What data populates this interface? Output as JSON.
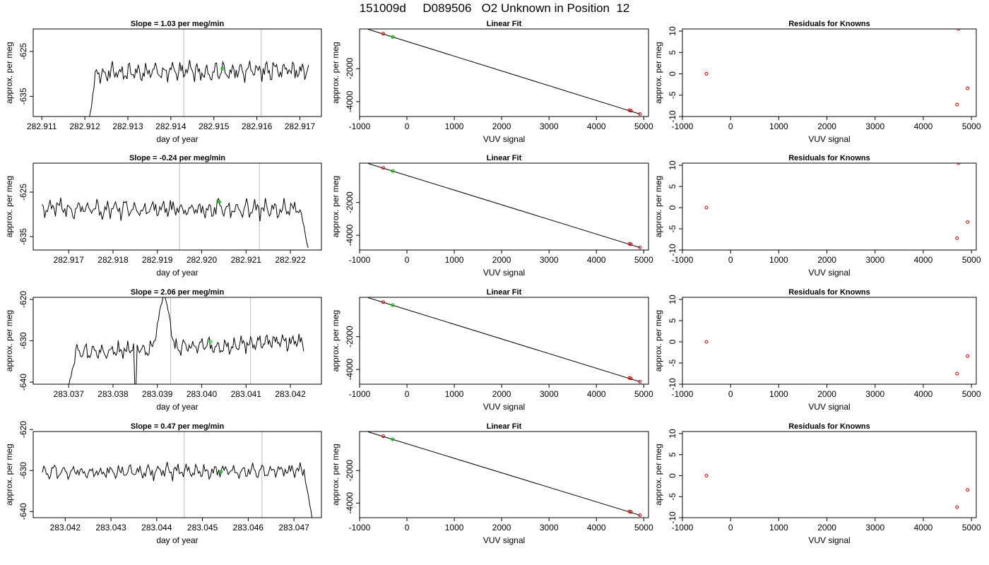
{
  "page_title": "151009d     D089506   O2 Unknown in Position  12",
  "colors": {
    "trace": "#000000",
    "known_point": "#cc0000",
    "unknown_point": "#00cc00",
    "marker_line": "#bbbbbb"
  },
  "chart_data": [
    {
      "type": "line",
      "row": 0,
      "title": "Slope =  1.03  per meg/min",
      "xlabel": "day of year",
      "ylabel": "approx. per meg",
      "xlim": [
        282.9108,
        282.9175
      ],
      "ylim": [
        -639.5,
        -620
      ],
      "xticks": [
        282.911,
        282.912,
        282.913,
        282.914,
        282.915,
        282.916,
        282.917
      ],
      "xtick_labels": [
        "282.911",
        "282.912",
        "282.913",
        "282.914",
        "282.915",
        "282.916",
        "282.917"
      ],
      "yticks": [
        -625,
        -635
      ],
      "ytick_labels": [
        "-625",
        "-635"
      ],
      "vlines": [
        282.9143,
        282.9161
      ],
      "trace": {
        "x_start": 282.9121,
        "x_end": 282.9172,
        "points": 180,
        "base": -629.5,
        "amplitude": 2.3,
        "drift": 0.8,
        "seed": 1,
        "start_drop": -640,
        "ramp_to": -631.5
      },
      "unknown_point": [
        282.9152,
        -628.8
      ]
    },
    {
      "type": "scatter_line",
      "row": 0,
      "title": "Linear Fit",
      "xlabel": "VUV signal",
      "ylabel": "approx. per meg",
      "xlim": [
        -1000,
        5100
      ],
      "ylim": [
        -4900,
        400
      ],
      "xticks": [
        -1000,
        0,
        1000,
        2000,
        3000,
        4000,
        5000
      ],
      "xtick_labels": [
        "-1000",
        "0",
        "1000",
        "2000",
        "3000",
        "4000",
        "5000"
      ],
      "yticks": [
        -2000,
        -4000
      ],
      "ytick_labels": [
        "-2000",
        "-4000"
      ],
      "fit_line": [
        [
          -820,
          380
        ],
        [
          4920,
          -4750
        ]
      ],
      "knowns": [
        [
          -500,
          110
        ],
        [
          4700,
          -4520
        ],
        [
          4730,
          -4550
        ],
        [
          4920,
          -4750
        ]
      ],
      "unknown": [
        -300,
        -80
      ]
    },
    {
      "type": "scatter",
      "row": 0,
      "title": "Residuals for Knowns",
      "xlabel": "VUV signal",
      "ylabel": "approx. per meg",
      "xlim": [
        -1000,
        5100
      ],
      "ylim": [
        -10,
        10.5
      ],
      "xticks": [
        -1000,
        0,
        1000,
        2000,
        3000,
        4000,
        5000
      ],
      "xtick_labels": [
        "-1000",
        "0",
        "1000",
        "2000",
        "3000",
        "4000",
        "5000"
      ],
      "yticks": [
        -10,
        -5,
        0,
        5,
        10
      ],
      "ytick_labels": [
        "-10",
        "-5",
        "0",
        "5",
        "10"
      ],
      "points": [
        [
          -500,
          0
        ],
        [
          4700,
          -7.2
        ],
        [
          4730,
          10.5
        ],
        [
          4920,
          -3.4
        ]
      ]
    },
    {
      "type": "line",
      "row": 1,
      "title": "Slope =  -0.24  per meg/min",
      "xlabel": "day of year",
      "ylabel": "approx. per meg",
      "xlim": [
        282.9162,
        282.9227
      ],
      "ylim": [
        -638,
        -618.5
      ],
      "xticks": [
        282.917,
        282.918,
        282.919,
        282.92,
        282.921,
        282.922
      ],
      "xtick_labels": [
        "282.917",
        "282.918",
        "282.919",
        "282.920",
        "282.921",
        "282.922"
      ],
      "yticks": [
        -625,
        -635
      ],
      "ytick_labels": [
        "-625",
        "-635"
      ],
      "vlines": [
        282.9195,
        282.9213
      ],
      "trace": {
        "x_start": 282.9164,
        "x_end": 282.9224,
        "points": 200,
        "base": -628.8,
        "amplitude": 2.2,
        "drift": -0.4,
        "seed": 2,
        "end_drop": -637.5
      },
      "unknown_point": [
        282.9204,
        -627.2
      ]
    },
    {
      "type": "scatter_line",
      "row": 1,
      "title": "Linear Fit",
      "xlabel": "VUV signal",
      "ylabel": "approx. per meg",
      "xlim": [
        -1000,
        5100
      ],
      "ylim": [
        -4900,
        400
      ],
      "xticks": [
        -1000,
        0,
        1000,
        2000,
        3000,
        4000,
        5000
      ],
      "xtick_labels": [
        "-1000",
        "0",
        "1000",
        "2000",
        "3000",
        "4000",
        "5000"
      ],
      "yticks": [
        -2000,
        -4000
      ],
      "ytick_labels": [
        "-2000",
        "-4000"
      ],
      "fit_line": [
        [
          -820,
          380
        ],
        [
          4920,
          -4750
        ]
      ],
      "knowns": [
        [
          -500,
          110
        ],
        [
          4700,
          -4520
        ],
        [
          4730,
          -4550
        ],
        [
          4920,
          -4750
        ]
      ],
      "unknown": [
        -300,
        -80
      ]
    },
    {
      "type": "scatter",
      "row": 1,
      "title": "Residuals for Knowns",
      "xlabel": "VUV signal",
      "ylabel": "approx. per meg",
      "xlim": [
        -1000,
        5100
      ],
      "ylim": [
        -10,
        10.5
      ],
      "xticks": [
        -1000,
        0,
        1000,
        2000,
        3000,
        4000,
        5000
      ],
      "xtick_labels": [
        "-1000",
        "0",
        "1000",
        "2000",
        "3000",
        "4000",
        "5000"
      ],
      "yticks": [
        -10,
        -5,
        0,
        5,
        10
      ],
      "ytick_labels": [
        "-10",
        "-5",
        "0",
        "5",
        "10"
      ],
      "points": [
        [
          -500,
          0
        ],
        [
          4700,
          -7.2
        ],
        [
          4730,
          10.5
        ],
        [
          4920,
          -3.4
        ]
      ]
    },
    {
      "type": "line",
      "row": 2,
      "title": "Slope =  2.06  per meg/min",
      "xlabel": "day of year",
      "ylabel": "approx. per meg",
      "xlim": [
        283.0362,
        283.0427
      ],
      "ylim": [
        -640.5,
        -619.5
      ],
      "xticks": [
        283.037,
        283.038,
        283.039,
        283.04,
        283.041,
        283.042
      ],
      "xtick_labels": [
        "283.037",
        "283.038",
        "283.039",
        "283.040",
        "283.041",
        "283.042"
      ],
      "yticks": [
        -620,
        -630,
        -640
      ],
      "ytick_labels": [
        "-620",
        "-630",
        "-640"
      ],
      "vlines": [
        283.0393,
        283.0411
      ],
      "trace": {
        "x_start": 283.037,
        "x_end": 283.0423,
        "points": 200,
        "base": -631.5,
        "amplitude": 2.0,
        "drift": 3.0,
        "seed": 3,
        "start_drop": -641,
        "spike_at": 283.03915,
        "spike_to": -618,
        "dip_at": 283.0385,
        "dip_to": -641
      },
      "unknown_point": [
        283.0402,
        -630.2
      ]
    },
    {
      "type": "scatter_line",
      "row": 2,
      "title": "Linear Fit",
      "xlabel": "VUV signal",
      "ylabel": "approx. per meg",
      "xlim": [
        -1000,
        5100
      ],
      "ylim": [
        -4900,
        400
      ],
      "xticks": [
        -1000,
        0,
        1000,
        2000,
        3000,
        4000,
        5000
      ],
      "xtick_labels": [
        "-1000",
        "0",
        "1000",
        "2000",
        "3000",
        "4000",
        "5000"
      ],
      "yticks": [
        -2000,
        -4000
      ],
      "ytick_labels": [
        "-2000",
        "-4000"
      ],
      "fit_line": [
        [
          -820,
          380
        ],
        [
          4920,
          -4750
        ]
      ],
      "knowns": [
        [
          -500,
          110
        ],
        [
          4700,
          -4520
        ],
        [
          4730,
          -4550
        ],
        [
          4920,
          -4750
        ]
      ],
      "unknown": [
        -300,
        -80
      ]
    },
    {
      "type": "scatter",
      "row": 2,
      "title": "Residuals for Knowns",
      "xlabel": "VUV signal",
      "ylabel": "approx. per meg",
      "xlim": [
        -1000,
        5100
      ],
      "ylim": [
        -10,
        10.5
      ],
      "xticks": [
        -1000,
        0,
        1000,
        2000,
        3000,
        4000,
        5000
      ],
      "xtick_labels": [
        "-1000",
        "0",
        "1000",
        "2000",
        "3000",
        "4000",
        "5000"
      ],
      "yticks": [
        -10,
        -5,
        0,
        5,
        10
      ],
      "ytick_labels": [
        "-10",
        "-5",
        "0",
        "5",
        "10"
      ],
      "points": [
        [
          -500,
          0
        ],
        [
          4700,
          -7.5
        ],
        [
          4920,
          -3.4
        ]
      ]
    },
    {
      "type": "line",
      "row": 3,
      "title": "Slope =  0.47  per meg/min",
      "xlabel": "day of year",
      "ylabel": "approx. per meg",
      "xlim": [
        283.0413,
        283.0476
      ],
      "ylim": [
        -641.5,
        -620.5
      ],
      "xticks": [
        283.042,
        283.043,
        283.044,
        283.045,
        283.046,
        283.047
      ],
      "xtick_labels": [
        "283.042",
        "283.043",
        "283.044",
        "283.045",
        "283.046",
        "283.047"
      ],
      "yticks": [
        -620,
        -630,
        -640
      ],
      "ytick_labels": [
        "-620",
        "-630",
        "-640"
      ],
      "vlines": [
        283.0446,
        283.0463
      ],
      "trace": {
        "x_start": 283.0415,
        "x_end": 283.0474,
        "points": 200,
        "base": -630.2,
        "amplitude": 1.9,
        "drift": 0.3,
        "seed": 4,
        "end_drop": -642
      },
      "unknown_point": [
        283.0454,
        -630.3
      ]
    },
    {
      "type": "scatter_line",
      "row": 3,
      "title": "Linear Fit",
      "xlabel": "VUV signal",
      "ylabel": "approx. per meg",
      "xlim": [
        -1000,
        5100
      ],
      "ylim": [
        -4900,
        400
      ],
      "xticks": [
        -1000,
        0,
        1000,
        2000,
        3000,
        4000,
        5000
      ],
      "xtick_labels": [
        "-1000",
        "0",
        "1000",
        "2000",
        "3000",
        "4000",
        "5000"
      ],
      "yticks": [
        -2000,
        -4000
      ],
      "ytick_labels": [
        "-2000",
        "-4000"
      ],
      "fit_line": [
        [
          -820,
          380
        ],
        [
          4920,
          -4750
        ]
      ],
      "knowns": [
        [
          -500,
          110
        ],
        [
          4700,
          -4520
        ],
        [
          4730,
          -4550
        ],
        [
          4920,
          -4750
        ]
      ],
      "unknown": [
        -300,
        -80
      ]
    },
    {
      "type": "scatter",
      "row": 3,
      "title": "Residuals for Knowns",
      "xlabel": "VUV signal",
      "ylabel": "approx. per meg",
      "xlim": [
        -1000,
        5100
      ],
      "ylim": [
        -10,
        10.5
      ],
      "xticks": [
        -1000,
        0,
        1000,
        2000,
        3000,
        4000,
        5000
      ],
      "xtick_labels": [
        "-1000",
        "0",
        "1000",
        "2000",
        "3000",
        "4000",
        "5000"
      ],
      "yticks": [
        -10,
        -5,
        0,
        5,
        10
      ],
      "ytick_labels": [
        "-10",
        "-5",
        "0",
        "5",
        "10"
      ],
      "points": [
        [
          -500,
          0
        ],
        [
          4700,
          -7.5
        ],
        [
          4920,
          -3.4
        ]
      ]
    }
  ]
}
